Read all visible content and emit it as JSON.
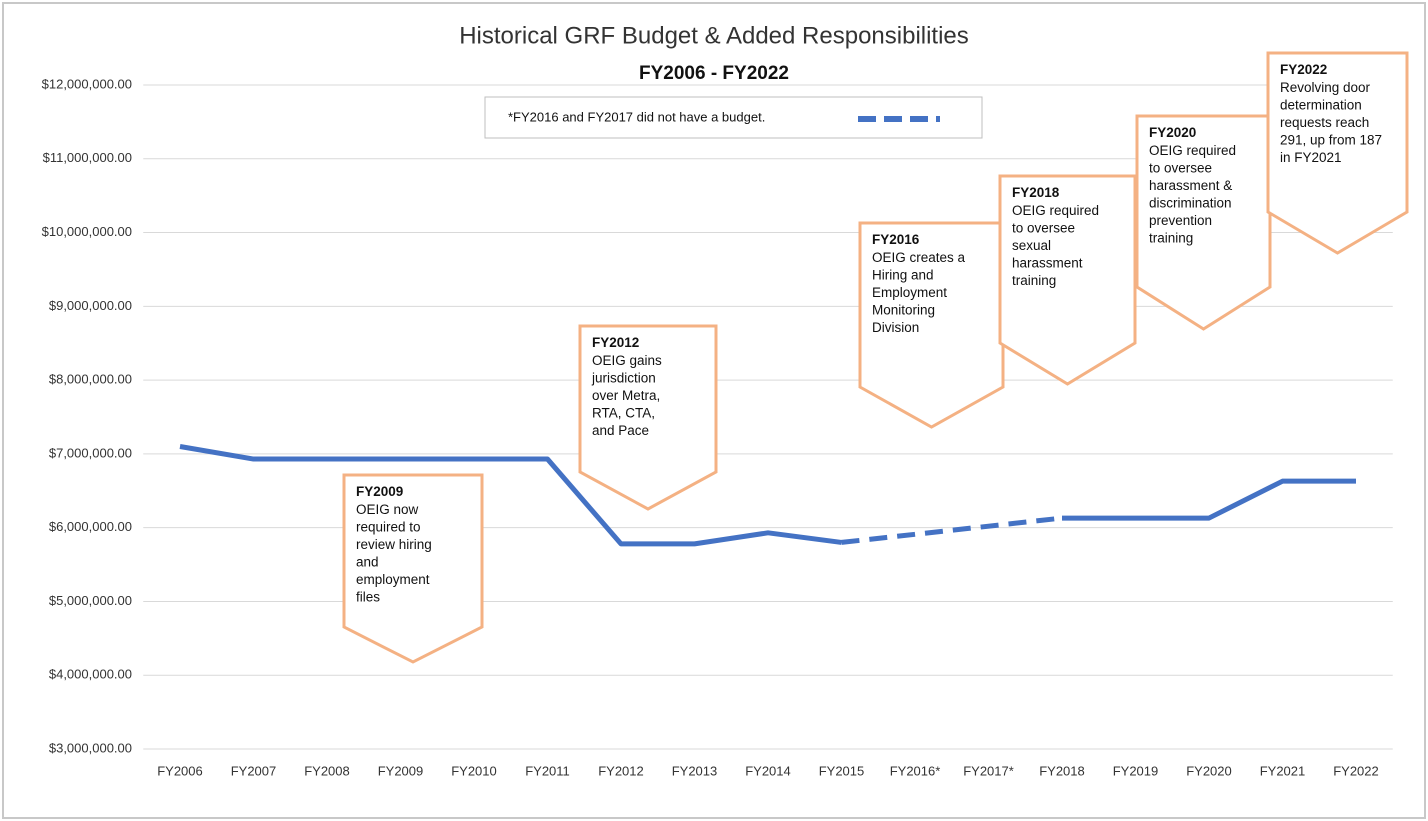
{
  "chart_data": {
    "type": "line",
    "title": "Historical GRF Budget & Added Responsibilities",
    "subtitle": "FY2006 - FY2022",
    "note": "*FY2016 and FY2017 did not have a budget.",
    "categories": [
      "FY2006",
      "FY2007",
      "FY2008",
      "FY2009",
      "FY2010",
      "FY2011",
      "FY2012",
      "FY2013",
      "FY2014",
      "FY2015",
      "FY2016*",
      "FY2017*",
      "FY2018",
      "FY2019",
      "FY2020",
      "FY2021",
      "FY2022"
    ],
    "series": [
      {
        "color": "#4472c4",
        "values": [
          7100000,
          6930000,
          6930000,
          6930000,
          6930000,
          6930000,
          5780000,
          5780000,
          5930000,
          5800000,
          null,
          null,
          6130000,
          6130000,
          6130000,
          6630000,
          6630000
        ]
      }
    ],
    "ylim": [
      3000000,
      12000000
    ],
    "yticks": [
      {
        "value": 3000000,
        "label": "$3,000,000.00"
      },
      {
        "value": 4000000,
        "label": "$4,000,000.00"
      },
      {
        "value": 5000000,
        "label": "$5,000,000.00"
      },
      {
        "value": 6000000,
        "label": "$6,000,000.00"
      },
      {
        "value": 7000000,
        "label": "$7,000,000.00"
      },
      {
        "value": 8000000,
        "label": "$8,000,000.00"
      },
      {
        "value": 9000000,
        "label": "$9,000,000.00"
      },
      {
        "value": 10000000,
        "label": "$10,000,000.00"
      },
      {
        "value": 11000000,
        "label": "$11,000,000.00"
      },
      {
        "value": 12000000,
        "label": "$12,000,000.00"
      }
    ],
    "grid": true,
    "annotations": [
      {
        "title": "FY2009",
        "lines": [
          "OEIG now",
          "required to",
          "review hiring",
          "and",
          "employment",
          "files"
        ]
      },
      {
        "title": "FY2012",
        "lines": [
          "OEIG gains",
          "jurisdiction",
          "over Metra,",
          "RTA, CTA,",
          "and Pace"
        ]
      },
      {
        "title": "FY2016",
        "lines": [
          "OEIG creates a",
          "Hiring and",
          "Employment",
          "Monitoring",
          "Division"
        ]
      },
      {
        "title": "FY2018",
        "lines": [
          "OEIG required",
          "to oversee",
          "sexual",
          "harassment",
          "training"
        ]
      },
      {
        "title": "FY2020",
        "lines": [
          "OEIG required",
          "to oversee",
          "harassment &",
          "discrimination",
          "prevention",
          "training"
        ]
      },
      {
        "title": "FY2022",
        "lines": [
          "Revolving door",
          "determination",
          "requests reach",
          "291, up from 187",
          "in FY2021"
        ]
      }
    ]
  }
}
